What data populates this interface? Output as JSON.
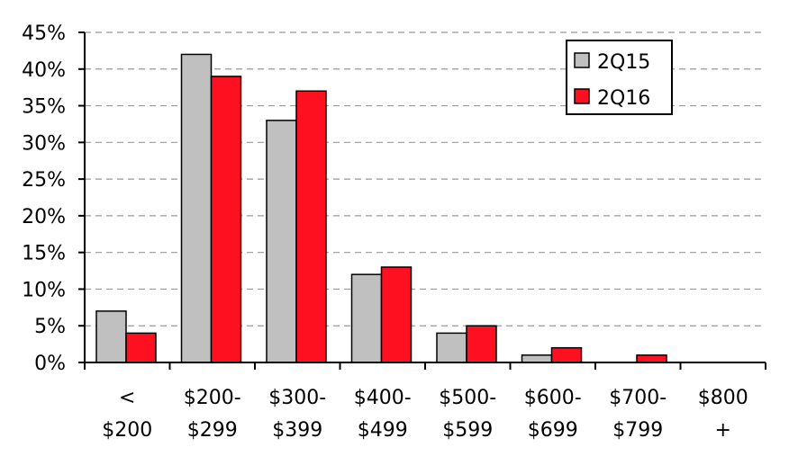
{
  "chart_data": {
    "type": "bar",
    "categories": [
      [
        "<",
        "$200"
      ],
      [
        "$200-",
        "$299"
      ],
      [
        "$300-",
        "$399"
      ],
      [
        "$400-",
        "$499"
      ],
      [
        "$500-",
        "$599"
      ],
      [
        "$600-",
        "$699"
      ],
      [
        "$700-",
        "$799"
      ],
      [
        "$800",
        "+"
      ]
    ],
    "series": [
      {
        "name": "2Q15",
        "color": "#c0c0c0",
        "values": [
          7,
          42,
          33,
          12,
          4,
          1,
          0,
          0
        ]
      },
      {
        "name": "2Q16",
        "color": "#ff1020",
        "values": [
          4,
          39,
          37,
          13,
          5,
          2,
          1,
          0
        ]
      }
    ],
    "ylim": [
      0,
      45
    ],
    "yticks": [
      "0%",
      "5%",
      "10%",
      "15%",
      "20%",
      "25%",
      "30%",
      "35%",
      "40%",
      "45%"
    ],
    "grid": true,
    "legend_position": "top-right",
    "title": "",
    "xlabel": "",
    "ylabel": ""
  }
}
